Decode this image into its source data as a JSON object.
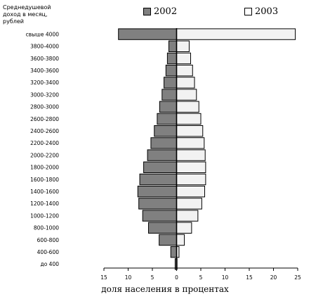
{
  "chart_data": {
    "type": "bar",
    "orientation": "horizontal",
    "ylabel_lines": [
      "Среднедушевой",
      "доход в месяц,",
      "рублей"
    ],
    "xlabel": "доля населения в процентах",
    "categories": [
      "свыше 4000",
      "3800-4000",
      "3600-3800",
      "3400-3600",
      "3200-3400",
      "3000-3200",
      "2800-3000",
      "2600-2800",
      "2400-2600",
      "2200-2400",
      "2000-2200",
      "1800-2000",
      "1600-1800",
      "1400-1600",
      "1200-1400",
      "1000-1200",
      "800-1000",
      "600-800",
      "400-600",
      "до 400"
    ],
    "series": [
      {
        "name": "2002",
        "color": "#808080",
        "side": "left",
        "values": [
          12.0,
          1.6,
          1.9,
          2.2,
          2.6,
          3.0,
          3.5,
          4.0,
          4.6,
          5.3,
          6.0,
          6.8,
          7.6,
          8.0,
          7.8,
          7.0,
          5.8,
          3.6,
          1.2,
          0.3
        ]
      },
      {
        "name": "2003",
        "color": "#f2f2f2",
        "side": "right",
        "values": [
          24.5,
          2.6,
          2.9,
          3.3,
          3.7,
          4.1,
          4.6,
          5.0,
          5.4,
          5.7,
          5.9,
          6.0,
          6.0,
          5.8,
          5.2,
          4.4,
          3.1,
          1.6,
          0.5,
          0.1
        ]
      }
    ],
    "xticks": [
      "15",
      "10",
      "5",
      "0",
      "5",
      "10",
      "15",
      "20",
      "25"
    ],
    "xlim": [
      -15,
      25
    ]
  }
}
